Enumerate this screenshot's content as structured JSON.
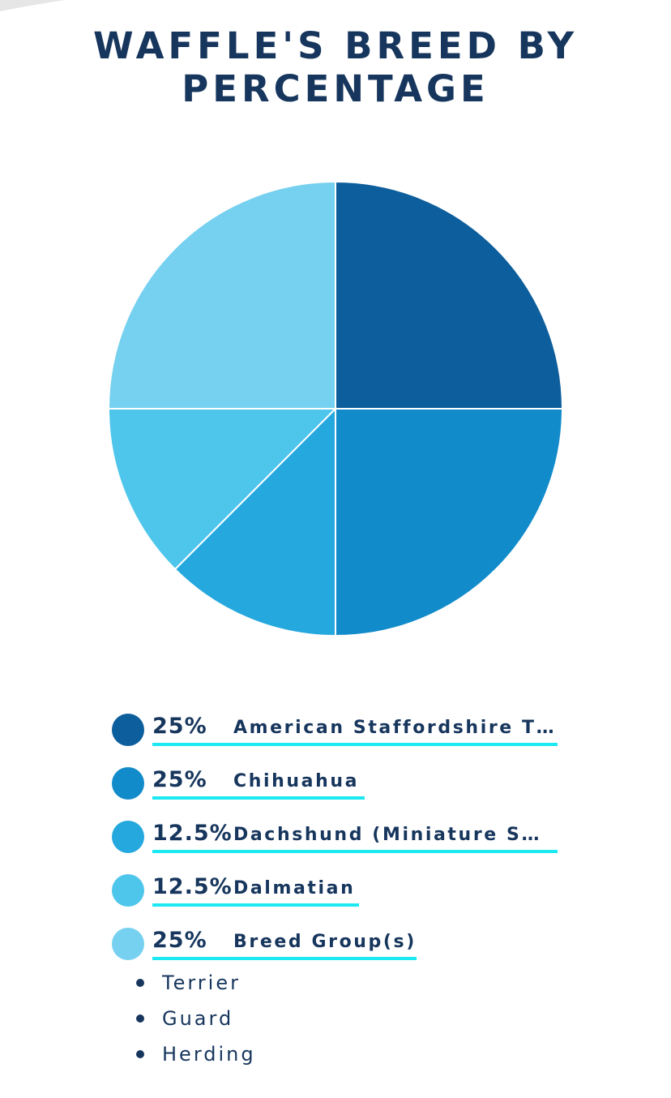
{
  "title_lines": [
    "WAFFLE'S BREED BY",
    "PERCENTAGE"
  ],
  "colors": {
    "title": "#17365d",
    "underline": "#1de9f2",
    "slice_stroke": "#ffffff"
  },
  "chart_data": {
    "type": "pie",
    "title": "WAFFLE'S BREED BY PERCENTAGE",
    "slices": [
      {
        "label": "American Staffordshire T…",
        "percent_label": "25%",
        "value": 25,
        "color": "#0d5e9c"
      },
      {
        "label": "Chihuahua",
        "percent_label": "25%",
        "value": 25,
        "color": "#128bca"
      },
      {
        "label": "Dachshund (Miniature S…",
        "percent_label": "12.5%",
        "value": 12.5,
        "color": "#24a8de"
      },
      {
        "label": "Dalmatian",
        "percent_label": "12.5%",
        "value": 12.5,
        "color": "#4ec6ec"
      },
      {
        "label": "Breed Group(s)",
        "percent_label": "25%",
        "value": 25,
        "color": "#76d0f0"
      }
    ],
    "start_angle_deg": 0,
    "direction": "clockwise from 12 o'clock"
  },
  "breed_groups": [
    "Terrier",
    "Guard",
    "Herding"
  ]
}
